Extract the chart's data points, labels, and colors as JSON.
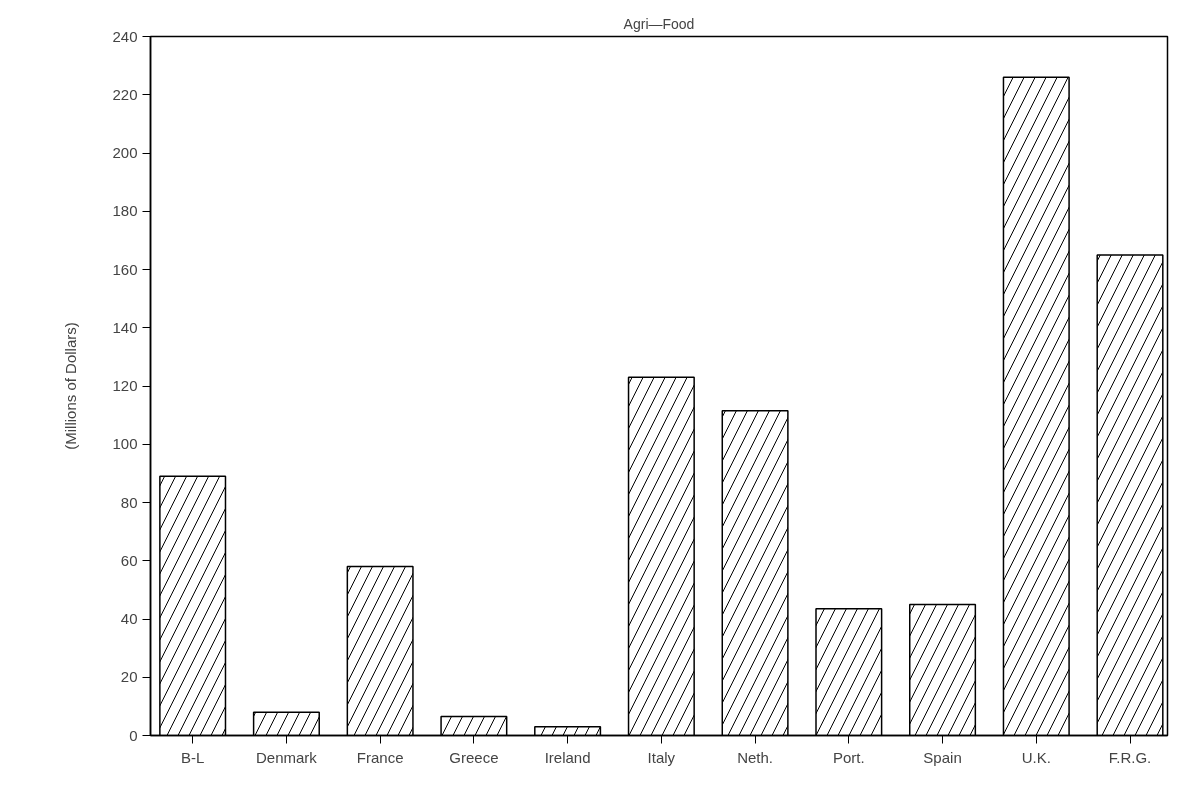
{
  "chart_data": {
    "type": "bar",
    "title": "Agri—Food",
    "ylabel": "(Millions of Dollars)",
    "categories": [
      "B-L",
      "Denmark",
      "France",
      "Greece",
      "Ireland",
      "Italy",
      "Neth.",
      "Port.",
      "Spain",
      "U.K.",
      "F.R.G."
    ],
    "values": [
      89,
      8,
      58,
      6.5,
      3,
      123,
      111.5,
      43.5,
      45,
      226,
      165
    ],
    "color": "#ffffff",
    "ylim": [
      0,
      240
    ],
    "yticks": [
      0,
      20,
      40,
      60,
      80,
      100,
      120,
      140,
      160,
      180,
      200,
      220,
      240
    ],
    "grid": false
  }
}
